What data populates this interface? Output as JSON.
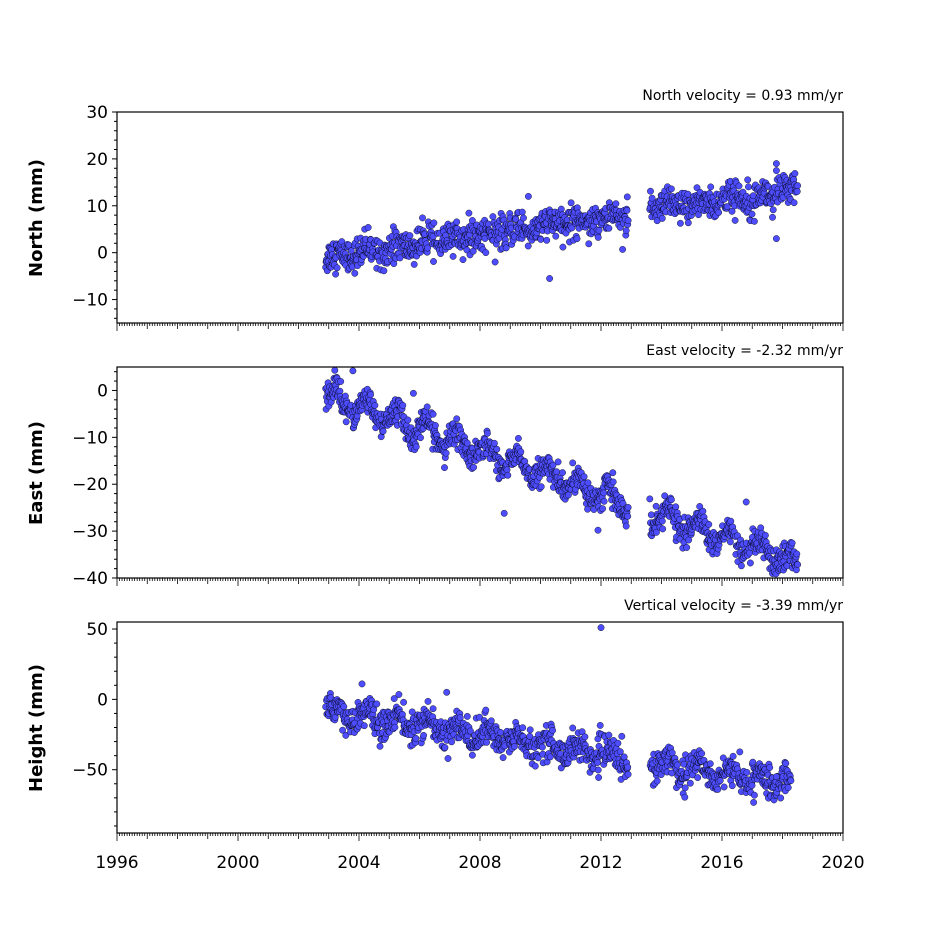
{
  "chart_data": {
    "type": "scatter",
    "x_ticks": [
      1996,
      2000,
      2004,
      2008,
      2012,
      2016,
      2020
    ],
    "xlim": [
      1996,
      2020
    ],
    "marker_color": "#4d4dff",
    "marker_edge_color": "#000000",
    "panels": [
      {
        "name": "north",
        "ylabel": "North (mm)",
        "annotation": "North velocity = 0.93 mm/yr",
        "ylim": [
          -15,
          30
        ],
        "y_ticks": [
          30,
          20,
          10,
          0,
          -10
        ],
        "y_tick_labels": [
          "30",
          "20",
          "10",
          "0",
          "−10"
        ],
        "velocity": 0.93,
        "data_start": 2002.9,
        "data_end": 2018.5,
        "start_value": -1,
        "noise": 1.7,
        "seasonal": 0.6,
        "gap": [
          2012.9,
          2013.6
        ],
        "outliers": [
          [
            2010.3,
            -5.5
          ],
          [
            2017.8,
            19
          ],
          [
            2017.8,
            17.5
          ],
          [
            2017.8,
            3
          ],
          [
            2008.5,
            -2
          ],
          [
            2009.6,
            12
          ]
        ]
      },
      {
        "name": "east",
        "ylabel": "East (mm)",
        "annotation": "East velocity = -2.32 mm/yr",
        "ylim": [
          -40,
          5
        ],
        "y_ticks": [
          0,
          -10,
          -20,
          -30,
          -40
        ],
        "y_tick_labels": [
          "0",
          "−10",
          "−20",
          "−30",
          "−40"
        ],
        "velocity": -2.32,
        "data_start": 2002.9,
        "data_end": 2018.5,
        "start_value": -1,
        "noise": 1.4,
        "seasonal": 2.2,
        "gap": [
          2012.9,
          2013.6
        ],
        "outliers": [
          [
            2003.2,
            4.3
          ],
          [
            2003.8,
            4.2
          ],
          [
            2005.8,
            -0.6
          ],
          [
            2008.8,
            -26.2
          ],
          [
            2011.9,
            -29.8
          ],
          [
            2016.8,
            -23.8
          ]
        ]
      },
      {
        "name": "height",
        "ylabel": "Height (mm)",
        "annotation": "Vertical velocity = -3.39 mm/yr",
        "ylim": [
          -95,
          55
        ],
        "y_ticks": [
          50,
          0,
          -50
        ],
        "y_tick_labels": [
          "50",
          "0",
          "−50"
        ],
        "velocity": -3.39,
        "data_start": 2002.9,
        "data_end": 2018.3,
        "start_value": -8,
        "noise": 5.5,
        "seasonal": 5,
        "gap": [
          2012.9,
          2013.6
        ],
        "outliers": [
          [
            2012.0,
            51
          ],
          [
            2006.9,
            5
          ],
          [
            2004.1,
            11
          ],
          [
            2017.8,
            -55
          ]
        ]
      }
    ]
  }
}
